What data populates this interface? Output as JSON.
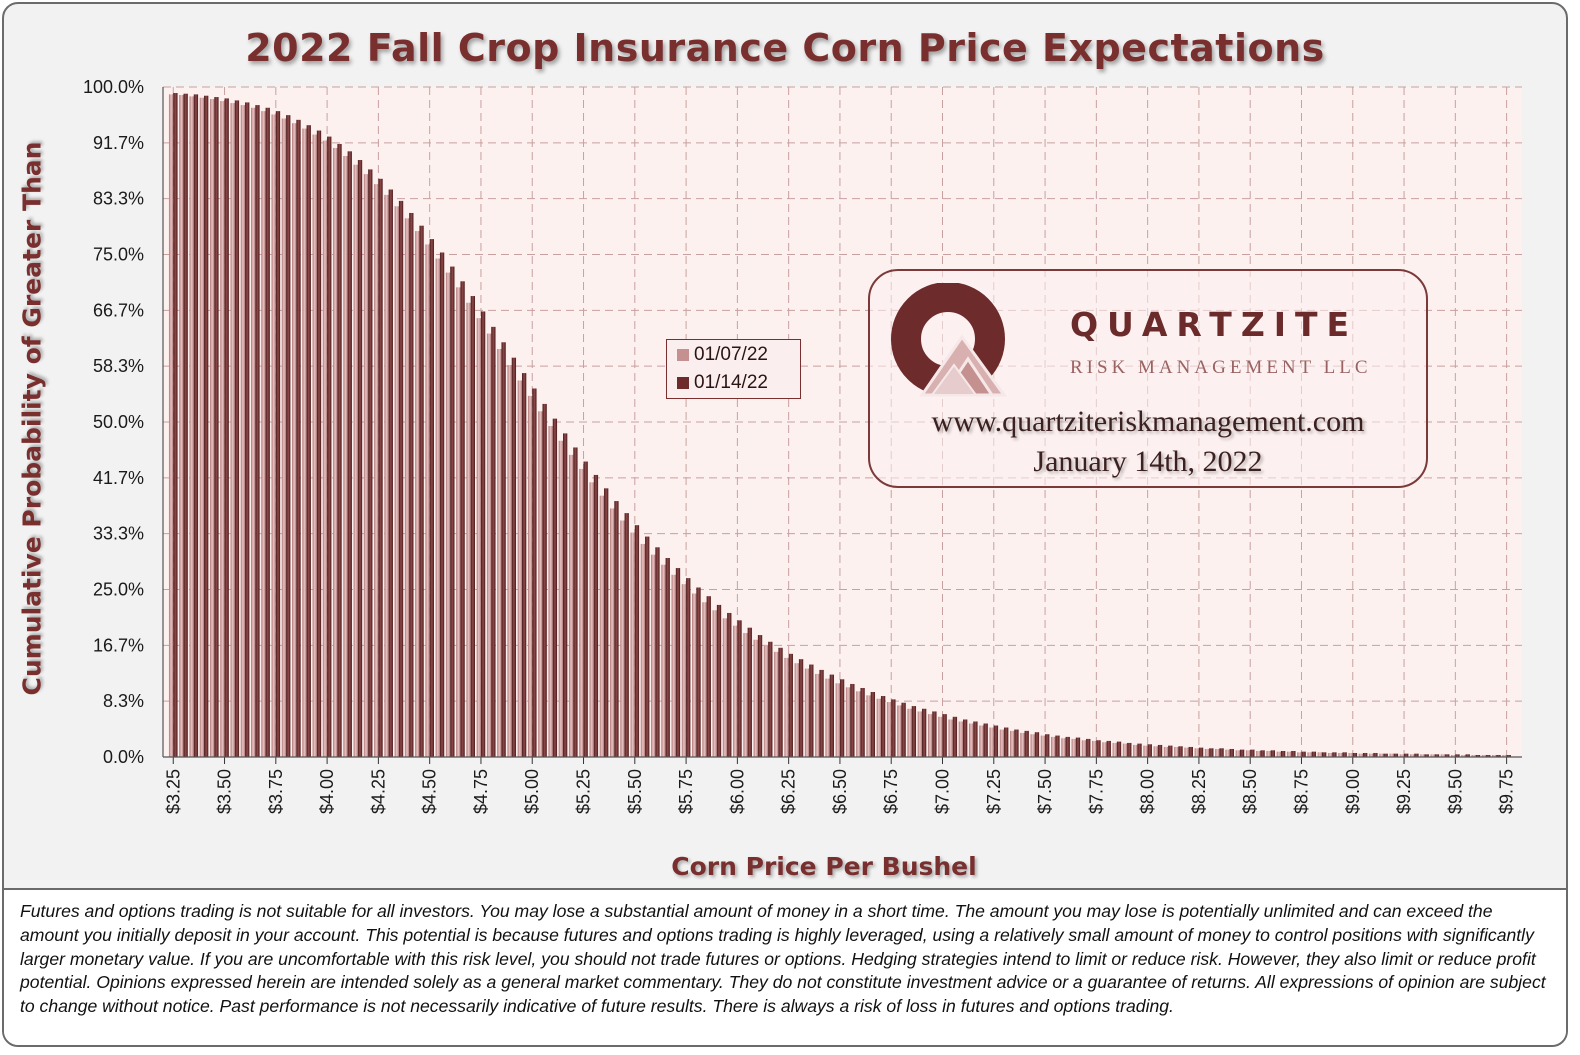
{
  "title": "2022 Fall Crop Insurance Corn Price Expectations",
  "chart_data": {
    "type": "bar",
    "title": "2022 Fall Crop Insurance Corn Price Expectations",
    "xlabel": "Corn Price Per Bushel",
    "ylabel": "Cumulative Probability of Greater Than",
    "x_start": 3.25,
    "x_step": 0.05,
    "ylim": [
      0,
      100
    ],
    "y_ticks": [
      "0.0%",
      "8.3%",
      "16.7%",
      "25.0%",
      "33.3%",
      "41.7%",
      "50.0%",
      "58.3%",
      "66.7%",
      "75.0%",
      "83.3%",
      "91.7%",
      "100.0%"
    ],
    "x_ticks": [
      "$3.25",
      "$3.50",
      "$3.75",
      "$4.00",
      "$4.25",
      "$4.50",
      "$4.75",
      "$5.00",
      "$5.25",
      "$5.50",
      "$5.75",
      "$6.00",
      "$6.25",
      "$6.50",
      "$6.75",
      "$7.00",
      "$7.25",
      "$7.50",
      "$7.75",
      "$8.00",
      "$8.25",
      "$8.50",
      "$8.75",
      "$9.00",
      "$9.25",
      "$9.50",
      "$9.75"
    ],
    "grid": true,
    "series": [
      {
        "name": "01/07/22",
        "color": "#c49090",
        "values": [
          98.9,
          98.8,
          98.6,
          98.4,
          98.2,
          97.9,
          97.6,
          97.3,
          96.9,
          96.4,
          95.9,
          95.3,
          94.6,
          93.8,
          92.9,
          92.0,
          90.9,
          89.7,
          88.4,
          87.0,
          85.5,
          83.9,
          82.2,
          80.4,
          78.5,
          76.5,
          74.4,
          72.3,
          70.1,
          67.8,
          65.5,
          63.2,
          60.9,
          58.5,
          56.2,
          53.9,
          51.6,
          49.4,
          47.2,
          45.1,
          43.0,
          41.0,
          39.0,
          37.1,
          35.3,
          33.5,
          31.8,
          30.2,
          28.7,
          27.2,
          25.8,
          24.4,
          23.1,
          21.9,
          20.7,
          19.6,
          18.5,
          17.5,
          16.6,
          15.7,
          14.8,
          14.0,
          13.2,
          12.4,
          11.7,
          11.0,
          10.4,
          9.8,
          9.2,
          8.7,
          8.2,
          7.7,
          7.2,
          6.8,
          6.4,
          6.0,
          5.6,
          5.3,
          5.0,
          4.7,
          4.4,
          4.1,
          3.9,
          3.6,
          3.4,
          3.2,
          3.0,
          2.8,
          2.7,
          2.5,
          2.4,
          2.2,
          2.1,
          2.0,
          1.8,
          1.7,
          1.6,
          1.5,
          1.5,
          1.4,
          1.3,
          1.2,
          1.2,
          1.1,
          1.0,
          1.0,
          0.9,
          0.9,
          0.8,
          0.8,
          0.7,
          0.7,
          0.7,
          0.6,
          0.6,
          0.6,
          0.5,
          0.5,
          0.5,
          0.5,
          0.4,
          0.4,
          0.4,
          0.4,
          0.4,
          0.3,
          0.3,
          0.3,
          0.3,
          0.3,
          0.3
        ]
      },
      {
        "name": "01/14/22",
        "color": "#6e2b2b",
        "values": [
          99.1,
          99.0,
          98.9,
          98.7,
          98.5,
          98.3,
          98.0,
          97.7,
          97.3,
          96.9,
          96.4,
          95.8,
          95.1,
          94.3,
          93.5,
          92.6,
          91.5,
          90.4,
          89.1,
          87.7,
          86.3,
          84.7,
          83.0,
          81.2,
          79.3,
          77.3,
          75.3,
          73.2,
          71.0,
          68.8,
          66.5,
          64.2,
          61.9,
          59.6,
          57.3,
          55.0,
          52.7,
          50.5,
          48.3,
          46.2,
          44.1,
          42.1,
          40.1,
          38.2,
          36.4,
          34.6,
          32.9,
          31.3,
          29.7,
          28.2,
          26.7,
          25.3,
          24.0,
          22.7,
          21.5,
          20.4,
          19.3,
          18.2,
          17.2,
          16.3,
          15.4,
          14.6,
          13.8,
          13.0,
          12.3,
          11.6,
          10.9,
          10.3,
          9.7,
          9.1,
          8.6,
          8.1,
          7.6,
          7.2,
          6.8,
          6.4,
          6.0,
          5.6,
          5.3,
          5.0,
          4.7,
          4.4,
          4.1,
          3.9,
          3.7,
          3.4,
          3.2,
          3.0,
          2.9,
          2.7,
          2.5,
          2.4,
          2.3,
          2.1,
          2.0,
          1.9,
          1.8,
          1.7,
          1.6,
          1.5,
          1.4,
          1.3,
          1.3,
          1.2,
          1.1,
          1.1,
          1.0,
          1.0,
          0.9,
          0.9,
          0.8,
          0.8,
          0.7,
          0.7,
          0.7,
          0.6,
          0.6,
          0.6,
          0.5,
          0.5,
          0.5,
          0.5,
          0.4,
          0.4,
          0.4,
          0.4,
          0.4,
          0.3,
          0.3,
          0.3,
          0.3
        ]
      }
    ]
  },
  "legend": {
    "item1": "01/07/22",
    "item2": "01/14/22"
  },
  "logo": {
    "name": "QUARTZITE",
    "subtitle": "RISK MANAGEMENT LLC",
    "url": "www.quartziteriskmanagement.com",
    "date": "January 14th, 2022"
  },
  "disclaimer": "Futures and options trading is not suitable for all investors. You may lose a substantial amount of money in a short time. The amount you may lose is potentially unlimited and can exceed the amount you initially deposit in your account. This potential is because futures and options trading is highly leveraged, using a relatively small amount of money to control positions with significantly larger monetary value. If you are uncomfortable with this risk level, you should not trade futures or options. Hedging strategies intend to limit or reduce risk. However, they also limit or reduce profit potential. Opinions expressed herein are intended solely as a general market commentary. They do not constitute investment advice or a guarantee of returns. All expressions of opinion are subject to change without notice. Past performance is not necessarily indicative of future results. There is always a risk of loss in futures and options trading."
}
